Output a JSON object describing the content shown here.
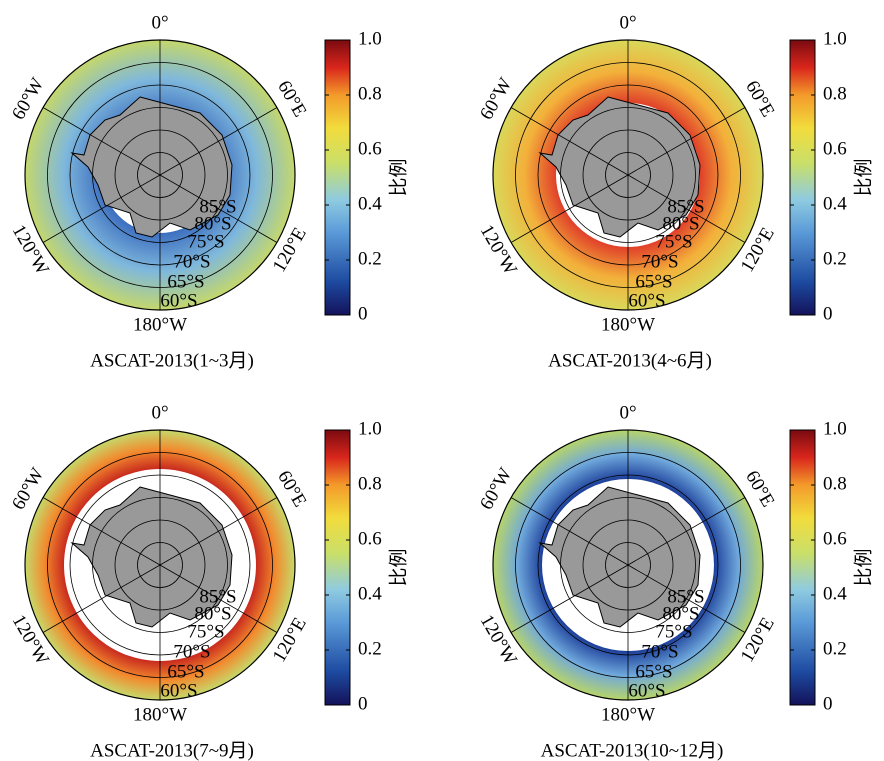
{
  "panels": [
    {
      "title": "ASCAT-2013(1~3月)",
      "lon_labels": [
        "0°",
        "60°E",
        "120°E",
        "180°W",
        "120°W",
        "60°W"
      ],
      "lat_labels": [
        "85°S",
        "80°S",
        "75°S",
        "70°S",
        "65°S",
        "60°S"
      ],
      "colorbar": {
        "label": "比例",
        "lim": [
          0,
          1
        ],
        "ticks": [
          0,
          0.2,
          0.4,
          0.6,
          0.8,
          {
            "value": 1,
            "label": "1.0"
          }
        ]
      }
    },
    {
      "title": "ASCAT-2013(4~6月)",
      "lon_labels": [
        "0°",
        "60°E",
        "120°E",
        "180°W",
        "120°W",
        "60°W"
      ],
      "lat_labels": [
        "85°S",
        "80°S",
        "75°S",
        "70°S",
        "65°S",
        "60°S"
      ],
      "colorbar": {
        "label": "比例",
        "lim": [
          0,
          1
        ],
        "ticks": [
          0,
          0.2,
          0.4,
          0.6,
          0.8,
          {
            "value": 1,
            "label": "1.0"
          }
        ]
      }
    },
    {
      "title": "ASCAT-2013(7~9月)",
      "lon_labels": [
        "0°",
        "60°E",
        "120°E",
        "180°W",
        "120°W",
        "60°W"
      ],
      "lat_labels": [
        "85°S",
        "80°S",
        "75°S",
        "70°S",
        "65°S",
        "60°S"
      ],
      "colorbar": {
        "label": "比例",
        "lim": [
          0,
          1
        ],
        "ticks": [
          0,
          0.2,
          0.4,
          0.6,
          0.8,
          {
            "value": 1,
            "label": "1.0"
          }
        ]
      }
    },
    {
      "title": "ASCAT-2013(10~12月)",
      "lon_labels": [
        "0°",
        "60°E",
        "120°E",
        "180°W",
        "120°W",
        "60°W"
      ],
      "lat_labels": [
        "85°S",
        "80°S",
        "75°S",
        "70°S",
        "65°S",
        "60°S"
      ],
      "colorbar": {
        "label": "比例",
        "lim": [
          0,
          1
        ],
        "ticks": [
          0,
          0.2,
          0.4,
          0.6,
          0.8,
          {
            "value": 1,
            "label": "1.0"
          }
        ]
      }
    }
  ]
}
